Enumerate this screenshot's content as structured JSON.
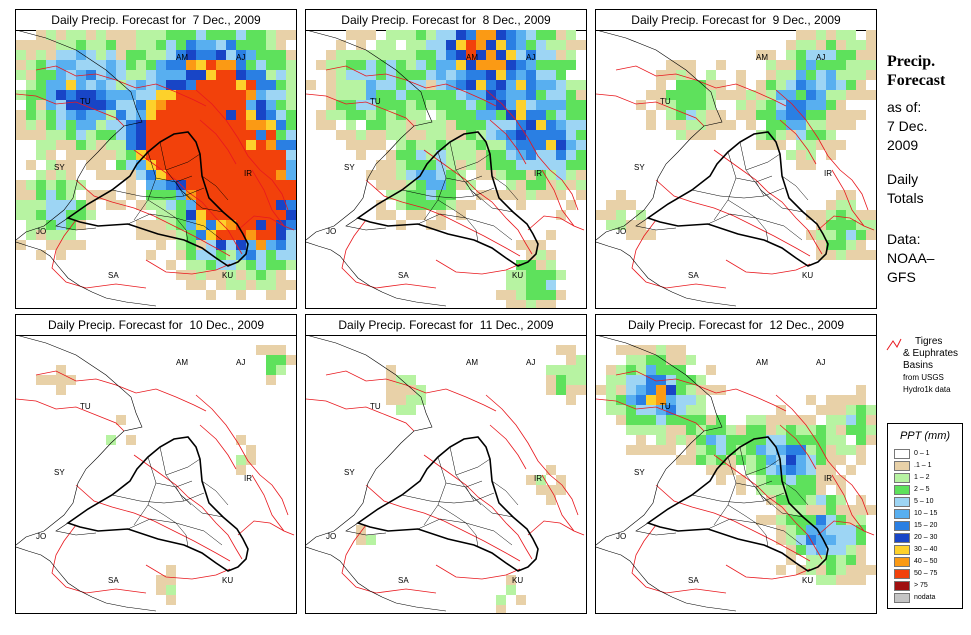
{
  "side": {
    "title": [
      "Precip.",
      "Forecast"
    ],
    "as_of_label": "as of:",
    "as_of_lines": [
      "7 Dec.",
      "2009"
    ],
    "totals_lines": [
      "Daily",
      "Totals"
    ],
    "source_lines": [
      "Data:",
      "NOAA–",
      "GFS"
    ]
  },
  "basin_note": {
    "lines": [
      "Tigres",
      "& Euphrates",
      "Basins"
    ],
    "source_lines": [
      "from USGS",
      "Hydro1k data"
    ],
    "line_color": "#e8181e"
  },
  "legend": {
    "title": "PPT (mm)",
    "bins": [
      {
        "label": "0 – 1",
        "color": "#ffffff"
      },
      {
        "label": ".1 – 1",
        "color": "#e8d1a8"
      },
      {
        "label": "1 – 2",
        "color": "#b7f3a2"
      },
      {
        "label": "2 – 5",
        "color": "#5ee15c"
      },
      {
        "label": "5 – 10",
        "color": "#9dd5f4"
      },
      {
        "label": "10 – 15",
        "color": "#58aff0"
      },
      {
        "label": "15 – 20",
        "color": "#2a7fe3"
      },
      {
        "label": "20 – 30",
        "color": "#1845c6"
      },
      {
        "label": "30 – 40",
        "color": "#fdd12b"
      },
      {
        "label": "40 – 50",
        "color": "#fb9a14"
      },
      {
        "label": "50 – 75",
        "color": "#f2410b"
      },
      {
        "label": "> 75",
        "color": "#a01010"
      },
      {
        "label": "nodata",
        "color": "#c4c4c4"
      }
    ]
  },
  "country_codes": [
    "AM",
    "AJ",
    "TU",
    "SY",
    "IR",
    "JO",
    "SA",
    "KU"
  ],
  "panels": [
    {
      "title_prefix": "Daily Precip. Forecast for",
      "date": "7 Dec., 2009",
      "intensity": 1.0,
      "extent": 0.95
    },
    {
      "title_prefix": "Daily Precip. Forecast for",
      "date": "8 Dec., 2009",
      "intensity": 0.65,
      "extent": 0.8
    },
    {
      "title_prefix": "Daily Precip. Forecast for",
      "date": "9 Dec., 2009",
      "intensity": 0.45,
      "extent": 0.65
    },
    {
      "title_prefix": "Daily Precip. Forecast for",
      "date": "10 Dec., 2009",
      "intensity": 0.22,
      "extent": 0.4
    },
    {
      "title_prefix": "Daily Precip. Forecast for",
      "date": "11 Dec., 2009",
      "intensity": 0.22,
      "extent": 0.45
    },
    {
      "title_prefix": "Daily Precip. Forecast for",
      "date": "12 Dec., 2009",
      "intensity": 0.6,
      "extent": 0.7
    }
  ]
}
